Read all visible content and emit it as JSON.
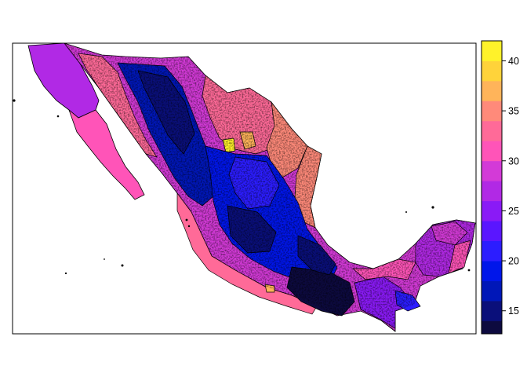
{
  "chart_data": {
    "type": "heatmap",
    "title": "",
    "subtitle": "",
    "description_kind": "choropleth map of Mexico municipalities",
    "grid": false,
    "legend": {
      "placement": "right",
      "type": "continuous colorbar",
      "range": [
        12.7,
        42
      ],
      "ticks": [
        15,
        20,
        25,
        30,
        35,
        40
      ],
      "tick_labels": [
        "15",
        "20",
        "25",
        "30",
        "35",
        "40"
      ],
      "bins": [
        {
          "from": 12.7,
          "to": 14,
          "color": "#0d0a3f"
        },
        {
          "from": 14,
          "to": 16,
          "color": "#0a0f7a"
        },
        {
          "from": 16,
          "to": 18,
          "color": "#0017b8"
        },
        {
          "from": 18,
          "to": 20,
          "color": "#0016ea"
        },
        {
          "from": 20,
          "to": 22,
          "color": "#2c1dff"
        },
        {
          "from": 22,
          "to": 24,
          "color": "#5a16ff"
        },
        {
          "from": 24,
          "to": 26,
          "color": "#8a1af6"
        },
        {
          "from": 26,
          "to": 28,
          "color": "#b129e5"
        },
        {
          "from": 28,
          "to": 30,
          "color": "#d33ad7"
        },
        {
          "from": 30,
          "to": 32,
          "color": "#ff54b8"
        },
        {
          "from": 32,
          "to": 34,
          "color": "#ff6a98"
        },
        {
          "from": 34,
          "to": 36,
          "color": "#ff8a7a"
        },
        {
          "from": 36,
          "to": 38,
          "color": "#ffb45a"
        },
        {
          "from": 38,
          "to": 40,
          "color": "#ffd33a"
        },
        {
          "from": 40,
          "to": 42,
          "color": "#fff22a"
        }
      ]
    },
    "regions_approx": [
      {
        "region": "Baja California peninsula (north)",
        "value_range": [
          26,
          30
        ]
      },
      {
        "region": "Baja California Sur",
        "value_range": [
          30,
          32
        ]
      },
      {
        "region": "Sonora / Chihuahua north",
        "value_range": [
          26,
          32
        ]
      },
      {
        "region": "Sierra Madre Occidental",
        "value_range": [
          14,
          20
        ]
      },
      {
        "region": "Coahuila / Nuevo Leon",
        "value_range": [
          28,
          40
        ]
      },
      {
        "region": "Tamaulipas coast",
        "value_range": [
          32,
          36
        ]
      },
      {
        "region": "Central plateau",
        "value_range": [
          16,
          22
        ]
      },
      {
        "region": "Pacific coast (Sinaloa to Guerrero)",
        "value_range": [
          30,
          36
        ]
      },
      {
        "region": "Oaxaca / Chiapas highlands",
        "value_range": [
          13,
          18
        ]
      },
      {
        "region": "Yucatan peninsula",
        "value_range": [
          26,
          32
        ]
      }
    ]
  }
}
